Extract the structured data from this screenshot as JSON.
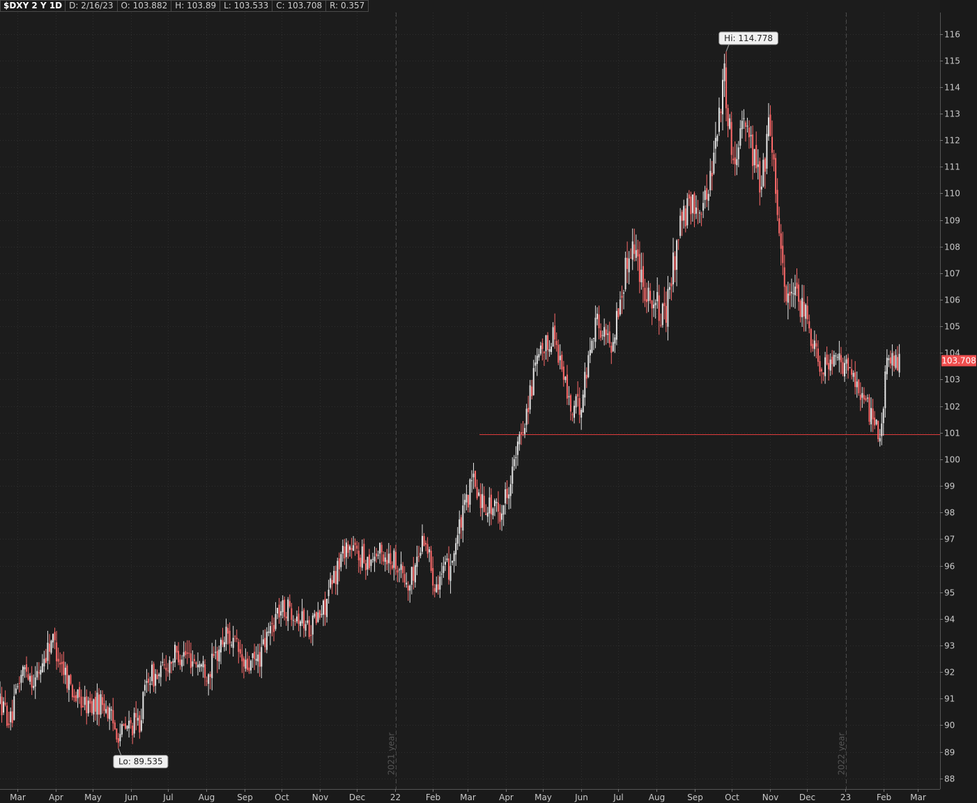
{
  "header": {
    "symbol": "$DXY 2 Y 1D",
    "date": "D: 2/16/23",
    "open": "O: 103.882",
    "high": "H: 103.89",
    "low": "L: 103.533",
    "close": "C: 103.708",
    "range": "R: 0.357"
  },
  "colors": {
    "background": "#1c1c1c",
    "up": "#e6e6e6",
    "down": "#ff6b6b",
    "support_line": "#e03c3c",
    "price_tag": "#f04e4e",
    "grid": "#2f2f2f"
  },
  "chart_data": {
    "type": "candlestick",
    "symbol": "$DXY",
    "y_ticks": [
      88,
      89,
      90,
      91,
      92,
      93,
      94,
      95,
      96,
      97,
      98,
      99,
      100,
      101,
      102,
      103,
      104,
      105,
      106,
      107,
      108,
      109,
      110,
      111,
      112,
      113,
      114,
      115,
      116
    ],
    "ylim": [
      87.6,
      116.8
    ],
    "x_tick_labels": [
      "Mar",
      "Apr",
      "May",
      "Jun",
      "Jul",
      "Aug",
      "Sep",
      "Oct",
      "Nov",
      "Dec",
      "22",
      "Feb",
      "Mar",
      "Apr",
      "May",
      "Jun",
      "Jul",
      "Aug",
      "Sep",
      "Oct",
      "Nov",
      "Dec",
      "23",
      "Feb",
      "Mar"
    ],
    "year_separators": [
      "2021 year",
      "2022 year"
    ],
    "high_label": "Hi: 114.778",
    "low_label": "Lo: 89.535",
    "last_price": "103.708",
    "support_level": 100.95,
    "price_path": [
      [
        "2021-02-17",
        90.9
      ],
      [
        "2021-02-26",
        90.1
      ],
      [
        "2021-03-05",
        91.8
      ],
      [
        "2021-03-10",
        92.2
      ],
      [
        "2021-03-17",
        91.6
      ],
      [
        "2021-03-31",
        93.3
      ],
      [
        "2021-04-08",
        92.3
      ],
      [
        "2021-04-20",
        91.0
      ],
      [
        "2021-04-30",
        90.7
      ],
      [
        "2021-05-12",
        90.9
      ],
      [
        "2021-05-20",
        90.0
      ],
      [
        "2021-05-25",
        89.7
      ],
      [
        "2021-06-03",
        90.0
      ],
      [
        "2021-06-10",
        90.1
      ],
      [
        "2021-06-17",
        91.9
      ],
      [
        "2021-06-25",
        91.8
      ],
      [
        "2021-07-07",
        92.6
      ],
      [
        "2021-07-15",
        92.7
      ],
      [
        "2021-07-27",
        92.4
      ],
      [
        "2021-08-05",
        92.0
      ],
      [
        "2021-08-20",
        93.5
      ],
      [
        "2021-08-30",
        92.7
      ],
      [
        "2021-09-03",
        92.1
      ],
      [
        "2021-09-15",
        92.5
      ],
      [
        "2021-09-30",
        94.3
      ],
      [
        "2021-10-12",
        94.4
      ],
      [
        "2021-10-25",
        93.7
      ],
      [
        "2021-11-05",
        94.2
      ],
      [
        "2021-11-24",
        96.8
      ],
      [
        "2021-12-10",
        96.2
      ],
      [
        "2021-12-20",
        96.5
      ],
      [
        "2022-01-05",
        96.2
      ],
      [
        "2022-01-14",
        95.1
      ],
      [
        "2022-01-27",
        97.2
      ],
      [
        "2022-02-04",
        95.4
      ],
      [
        "2022-02-16",
        95.9
      ],
      [
        "2022-03-07",
        99.2
      ],
      [
        "2022-03-15",
        98.4
      ],
      [
        "2022-03-30",
        98.0
      ],
      [
        "2022-04-12",
        100.2
      ],
      [
        "2022-04-28",
        103.6
      ],
      [
        "2022-05-12",
        104.8
      ],
      [
        "2022-05-26",
        101.8
      ],
      [
        "2022-06-03",
        102.1
      ],
      [
        "2022-06-14",
        105.2
      ],
      [
        "2022-06-28",
        104.3
      ],
      [
        "2022-07-14",
        108.3
      ],
      [
        "2022-07-25",
        106.5
      ],
      [
        "2022-08-10",
        105.2
      ],
      [
        "2022-08-22",
        108.9
      ],
      [
        "2022-09-01",
        109.5
      ],
      [
        "2022-09-13",
        109.8
      ],
      [
        "2022-09-27",
        114.4
      ],
      [
        "2022-10-05",
        110.9
      ],
      [
        "2022-10-12",
        113.2
      ],
      [
        "2022-10-27",
        110.2
      ],
      [
        "2022-11-03",
        112.8
      ],
      [
        "2022-11-15",
        106.4
      ],
      [
        "2022-11-30",
        105.6
      ],
      [
        "2022-12-14",
        103.6
      ],
      [
        "2022-12-30",
        103.6
      ],
      [
        "2023-01-11",
        103.1
      ],
      [
        "2023-01-20",
        102.0
      ],
      [
        "2023-02-01",
        101.0
      ],
      [
        "2023-02-06",
        103.7
      ],
      [
        "2023-02-16",
        103.7
      ]
    ]
  }
}
